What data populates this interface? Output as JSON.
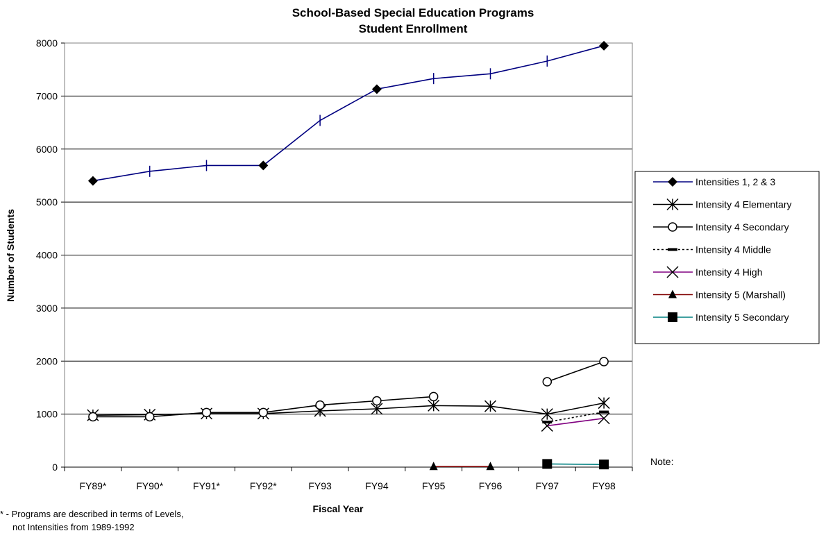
{
  "chart_data": {
    "type": "line",
    "title": "School-Based Special Education Programs",
    "subtitle": "Student Enrollment",
    "xlabel": "Fiscal Year",
    "ylabel": "Number of Students",
    "categories": [
      "FY89*",
      "FY90*",
      "FY91*",
      "FY92*",
      "FY93",
      "FY94",
      "FY95",
      "FY96",
      "FY97",
      "FY98"
    ],
    "ylim": [
      0,
      8000
    ],
    "yticks": [
      0,
      1000,
      2000,
      3000,
      4000,
      5000,
      6000,
      7000,
      8000
    ],
    "grid": true,
    "legend_position": "right",
    "series": [
      {
        "name": "Intensities 1, 2 & 3",
        "color": "#000080",
        "marker": "diamond",
        "dash": "solid",
        "values": [
          5400,
          5580,
          5690,
          5690,
          6540,
          7130,
          7330,
          7420,
          7660,
          7950
        ],
        "marker_mask": [
          true,
          false,
          false,
          true,
          false,
          true,
          false,
          false,
          false,
          true
        ]
      },
      {
        "name": "Intensity 4 Elementary",
        "color": "#000000",
        "marker": "asterisk",
        "dash": "solid",
        "values": [
          980,
          990,
          1010,
          1010,
          1060,
          1100,
          1160,
          1150,
          1000,
          1210
        ]
      },
      {
        "name": "Intensity 4 Secondary",
        "color": "#000000",
        "marker": "circle",
        "dash": "solid",
        "values": [
          950,
          950,
          1030,
          1030,
          1170,
          1250,
          1330,
          null,
          1610,
          1990
        ]
      },
      {
        "name": "Intensity 4 Middle",
        "color": "#000000",
        "marker": "dash",
        "dash": "dotted",
        "values": [
          null,
          null,
          null,
          null,
          null,
          null,
          null,
          null,
          850,
          1040
        ]
      },
      {
        "name": "Intensity 4 High",
        "color": "#800080",
        "marker": "x",
        "dash": "solid",
        "values": [
          null,
          null,
          null,
          null,
          null,
          null,
          null,
          null,
          780,
          920
        ]
      },
      {
        "name": "Intensity 5 (Marshall)",
        "color": "#800000",
        "marker": "triangle",
        "dash": "solid",
        "values": [
          null,
          null,
          null,
          null,
          null,
          null,
          10,
          10,
          null,
          null
        ]
      },
      {
        "name": "Intensity 5 Secondary",
        "color": "#008080",
        "marker": "square",
        "dash": "solid",
        "values": [
          null,
          null,
          null,
          null,
          null,
          null,
          null,
          null,
          60,
          50
        ]
      }
    ]
  },
  "note_label": "Note:",
  "footnote": {
    "line1": "* - Programs are described in terms of Levels,",
    "line2": "not Intensities from 1989-1992"
  }
}
